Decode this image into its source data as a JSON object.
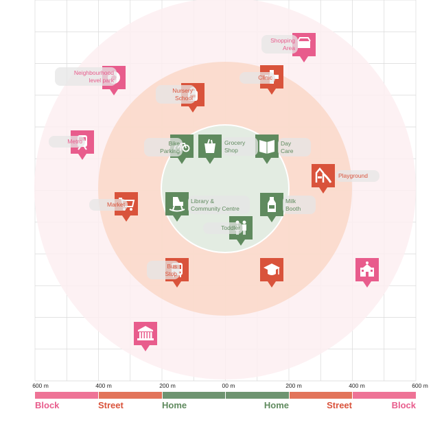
{
  "colors": {
    "block": "#e85c8c",
    "street": "#d9533b",
    "home": "#5f8a5e",
    "block_band": "#ee7396",
    "street_band": "#e2745a",
    "home_band": "#6e9470",
    "ring_block": "#fdeef1",
    "ring_street": "#fad8c8",
    "ring_home": "#e3ece2",
    "grid": "#d9d9d9"
  },
  "markers": [
    {
      "name": "shopping-area-marker",
      "icon": "shopping-bag-icon",
      "zone": "block",
      "lines": [
        "Shopping",
        "Area"
      ],
      "align": "right"
    },
    {
      "name": "neighbourhood-park-marker",
      "icon": "football-icon",
      "zone": "block",
      "lines": [
        "Neighbourhood",
        "level park"
      ],
      "align": "right"
    },
    {
      "name": "clinic-marker",
      "icon": "medical-cross-icon",
      "zone": "street",
      "lines": [
        "Clinic"
      ],
      "align": "right"
    },
    {
      "name": "nursery-school-marker",
      "icon": "school-bag-icon",
      "zone": "street",
      "lines": [
        "Nursery",
        "School"
      ],
      "align": "right"
    },
    {
      "name": "metro-marker",
      "icon": "train-icon",
      "zone": "block",
      "lines": [
        "Metro"
      ],
      "align": "right"
    },
    {
      "name": "bike-parking-marker",
      "icon": "bicycle-icon",
      "zone": "home",
      "lines": [
        "Bike",
        "Parking"
      ],
      "align": "right"
    },
    {
      "name": "grocery-shop-marker",
      "icon": "grocery-bag-icon",
      "zone": "home",
      "lines": [
        "Grocery",
        "Shop"
      ],
      "align": "left"
    },
    {
      "name": "day-care-marker",
      "icon": "book-icon",
      "zone": "home",
      "lines": [
        "Day",
        "Care"
      ],
      "align": "left"
    },
    {
      "name": "playground-marker",
      "icon": "slide-icon",
      "zone": "street",
      "lines": [
        "Playground"
      ],
      "align": "left"
    },
    {
      "name": "market-marker",
      "icon": "shopping-cart-icon",
      "zone": "street",
      "lines": [
        "Market"
      ],
      "align": "right"
    },
    {
      "name": "library-marker",
      "icon": "rocking-horse-icon",
      "zone": "home",
      "lines": [
        "Library &",
        "Community Centre"
      ],
      "align": "left"
    },
    {
      "name": "milk-booth-marker",
      "icon": "milk-bottle-icon",
      "zone": "home",
      "lines": [
        "Milk",
        "Booth"
      ],
      "align": "left"
    },
    {
      "name": "toddler-marker",
      "icon": "children-icon",
      "zone": "home",
      "lines": [
        "Toddler"
      ],
      "align": "right"
    },
    {
      "name": "bus-stop-marker",
      "icon": "bus-icon",
      "zone": "street",
      "lines": [
        "Bus",
        "Stop"
      ],
      "align": "right"
    },
    {
      "name": "education-marker",
      "icon": "graduation-cap-icon",
      "zone": "street",
      "lines": [],
      "align": "right"
    },
    {
      "name": "building-marker",
      "icon": "temple-icon",
      "zone": "block",
      "lines": [],
      "align": "right"
    },
    {
      "name": "museum-marker",
      "icon": "museum-icon",
      "zone": "block",
      "lines": [],
      "align": "right"
    }
  ],
  "scale": {
    "ticks": [
      "600 m",
      "400 m",
      "200 m",
      "00 m",
      "200 m",
      "400 m",
      "600 m"
    ],
    "zones": [
      "Block",
      "Street",
      "Home",
      "Home",
      "Street",
      "Block"
    ]
  }
}
